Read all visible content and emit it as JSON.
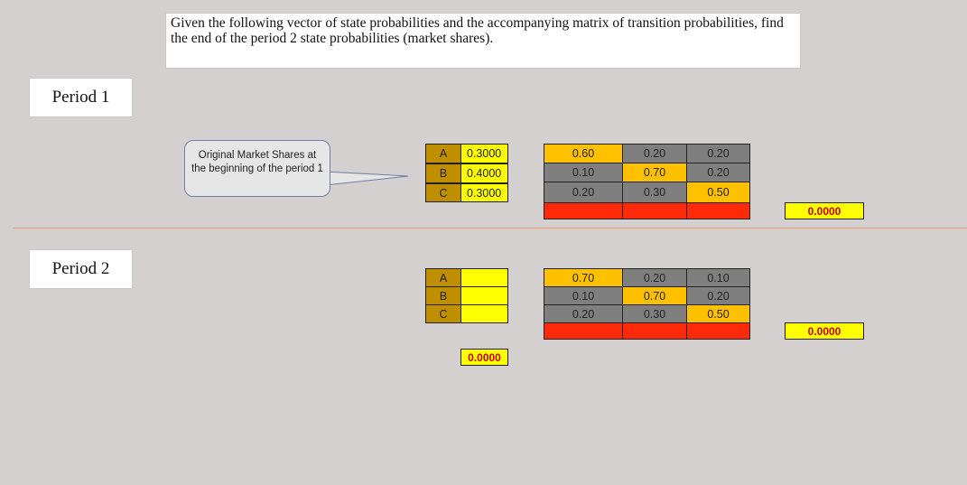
{
  "instructions": "Given the following vector of state probabilities and the accompanying matrix of transition probabilities, find the end of the period 2 state probabilities (market shares).",
  "period1": {
    "label": "Period 1",
    "callout": "Original Market Shares at the beginning of the period 1",
    "states": [
      "A",
      "B",
      "C"
    ],
    "probabilities": [
      "0.3000",
      "0.4000",
      "0.3000"
    ],
    "matrix": [
      [
        "0.60",
        "0.20",
        "0.20"
      ],
      [
        "0.10",
        "0.70",
        "0.20"
      ],
      [
        "0.20",
        "0.30",
        "0.50"
      ]
    ],
    "total": "0.0000"
  },
  "period2": {
    "label": "Period 2",
    "states": [
      "A",
      "B",
      "C"
    ],
    "probabilities": [
      "",
      "",
      ""
    ],
    "probabilities_total": "0.0000",
    "matrix": [
      [
        "0.70",
        "0.20",
        "0.10"
      ],
      [
        "0.10",
        "0.70",
        "0.20"
      ],
      [
        "0.20",
        "0.30",
        "0.50"
      ]
    ],
    "total": "0.0000"
  },
  "colors": {
    "background": "#d3d0cf",
    "state_label": "#bf8f00",
    "probability": "#ffff00",
    "diagonal": "#ffc000",
    "off_diagonal": "#7f7f7f",
    "result_row": "#ff2a0a",
    "result_text": "#c00000"
  }
}
